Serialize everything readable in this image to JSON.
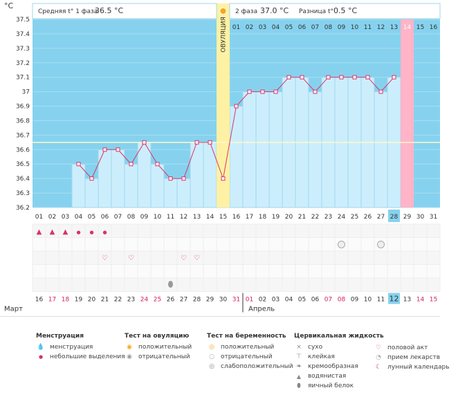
{
  "header": {
    "unit": "°C",
    "phase1_label": "Средняя t° 1 фаза",
    "phase1_value": "36.5 °C",
    "phase2_label": "2 фаза",
    "phase2_value": "37.0 °C",
    "diff_label": "Разница t°",
    "diff_value": "0.5 °C",
    "ovulation_label": "ОВУЛЯЦИЯ"
  },
  "colors": {
    "bg_blue": "#86d2ee",
    "bar_fill": "#cceefc",
    "bar_stroke": "#9fd6ef",
    "ovulation": "#fff1a3",
    "pink": "#ffb4c8",
    "line": "#d9326b",
    "today": "#86d2ee",
    "holiday_text": "#d81f5a"
  },
  "chart_data": {
    "type": "line",
    "title": "Средняя t° 1 фаза 36.5 °C / 2 фаза 37.0 °C / Разница t° 0.5 °C",
    "ylabel": "°C",
    "ylim": [
      36.2,
      37.5
    ],
    "yticks": [
      "36.2",
      "36.3",
      "36.4",
      "36.5",
      "36.6",
      "36.7",
      "36.8",
      "36.9",
      "37",
      "37.1",
      "37.2",
      "37.3",
      "37.4",
      "37.5"
    ],
    "coverline": 36.65,
    "ovulation_day": "15",
    "x": [
      "01",
      "02",
      "03",
      "04",
      "05",
      "06",
      "07",
      "08",
      "09",
      "10",
      "11",
      "12",
      "13",
      "14",
      "15",
      "16",
      "17",
      "18",
      "19",
      "20",
      "21",
      "22",
      "23",
      "24",
      "25",
      "26",
      "27",
      "28",
      "29",
      "30",
      "31"
    ],
    "series": [
      {
        "name": "BBT",
        "values": [
          null,
          null,
          null,
          36.5,
          36.4,
          36.6,
          36.6,
          36.5,
          36.65,
          36.5,
          36.4,
          36.4,
          36.65,
          36.65,
          36.4,
          36.9,
          37.0,
          37.0,
          37.0,
          37.1,
          37.1,
          37.0,
          37.1,
          37.1,
          37.1,
          37.1,
          37.0,
          37.1,
          null,
          null,
          null
        ]
      }
    ],
    "phase_days": [
      "01",
      "02",
      "03",
      "04",
      "05",
      "06",
      "07",
      "08",
      "09",
      "10",
      "11",
      "12",
      "13",
      "14",
      "15",
      "16"
    ],
    "phase_highlight_day": "14",
    "cycle_today": "28"
  },
  "calendar": {
    "dates": [
      "16",
      "17",
      "18",
      "19",
      "20",
      "21",
      "22",
      "23",
      "24",
      "25",
      "26",
      "27",
      "28",
      "29",
      "30",
      "31",
      "01",
      "02",
      "03",
      "04",
      "05",
      "06",
      "07",
      "08",
      "09",
      "10",
      "11",
      "12",
      "13",
      "14",
      "15"
    ],
    "holiday_dates": [
      "17",
      "18",
      "24",
      "25",
      "31",
      "01",
      "07",
      "08",
      "14",
      "15"
    ],
    "today_date": "12",
    "month1": "Март",
    "month2": "Апрель"
  },
  "legend": {
    "menstruation": {
      "title": "Менструация",
      "items": [
        "менструация",
        "небольшие выделения"
      ]
    },
    "ovulation_test": {
      "title": "Тест на овуляцию",
      "items": [
        "положительный",
        "отрицательный"
      ]
    },
    "pregnancy_test": {
      "title": "Тест на беременность",
      "items": [
        "положительный",
        "отрицательный",
        "слабоположительный"
      ]
    },
    "cervical": {
      "title": "Цервикальная жидкость",
      "items": [
        "сухо",
        "клейкая",
        "кремообразная",
        "водянистая",
        "яичный белок"
      ]
    },
    "other": {
      "items": [
        "половой акт",
        "прием лекарств",
        "лунный календарь"
      ]
    }
  }
}
